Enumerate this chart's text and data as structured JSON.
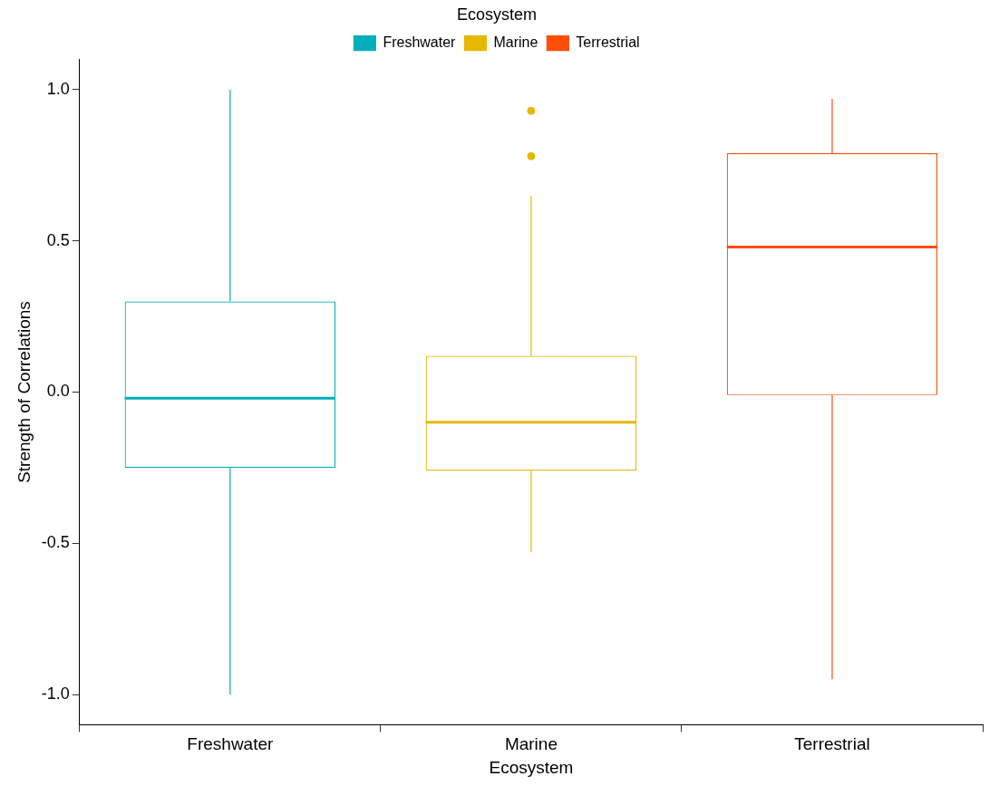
{
  "chart_data": {
    "type": "box",
    "xlabel": "Ecosystem",
    "ylabel": "Strength of Correlations",
    "legend_title": "Ecosystem",
    "legend": "top",
    "categories": [
      "Freshwater",
      "Marine",
      "Terrestrial"
    ],
    "series": [
      {
        "name": "Freshwater",
        "color": "#00afbb",
        "boxes": [
          {
            "low": -1.0,
            "q1": -0.25,
            "median": -0.02,
            "q3": 0.3,
            "high": 1.0
          },
          null,
          null
        ]
      },
      {
        "name": "Marine",
        "color": "#e7b800",
        "boxes": [
          null,
          {
            "low": -0.53,
            "q1": -0.26,
            "median": -0.1,
            "q3": 0.12,
            "high": 0.65,
            "outliers": [
              0.93,
              0.78
            ]
          },
          null
        ]
      },
      {
        "name": "Terrestrial",
        "color": "#fc4e07",
        "boxes": [
          null,
          null,
          {
            "low": -0.95,
            "q1": -0.01,
            "median": 0.48,
            "q3": 0.79,
            "high": 0.97
          }
        ]
      }
    ],
    "ylim": [
      -1.1,
      1.1
    ],
    "yticks": [
      {
        "value": -1,
        "label": "-1.0"
      },
      {
        "value": -0.5,
        "label": "-0.5"
      },
      {
        "value": 0,
        "label": "0.0"
      },
      {
        "value": 0.5,
        "label": "0.5"
      },
      {
        "value": 1,
        "label": "1.0"
      }
    ]
  }
}
